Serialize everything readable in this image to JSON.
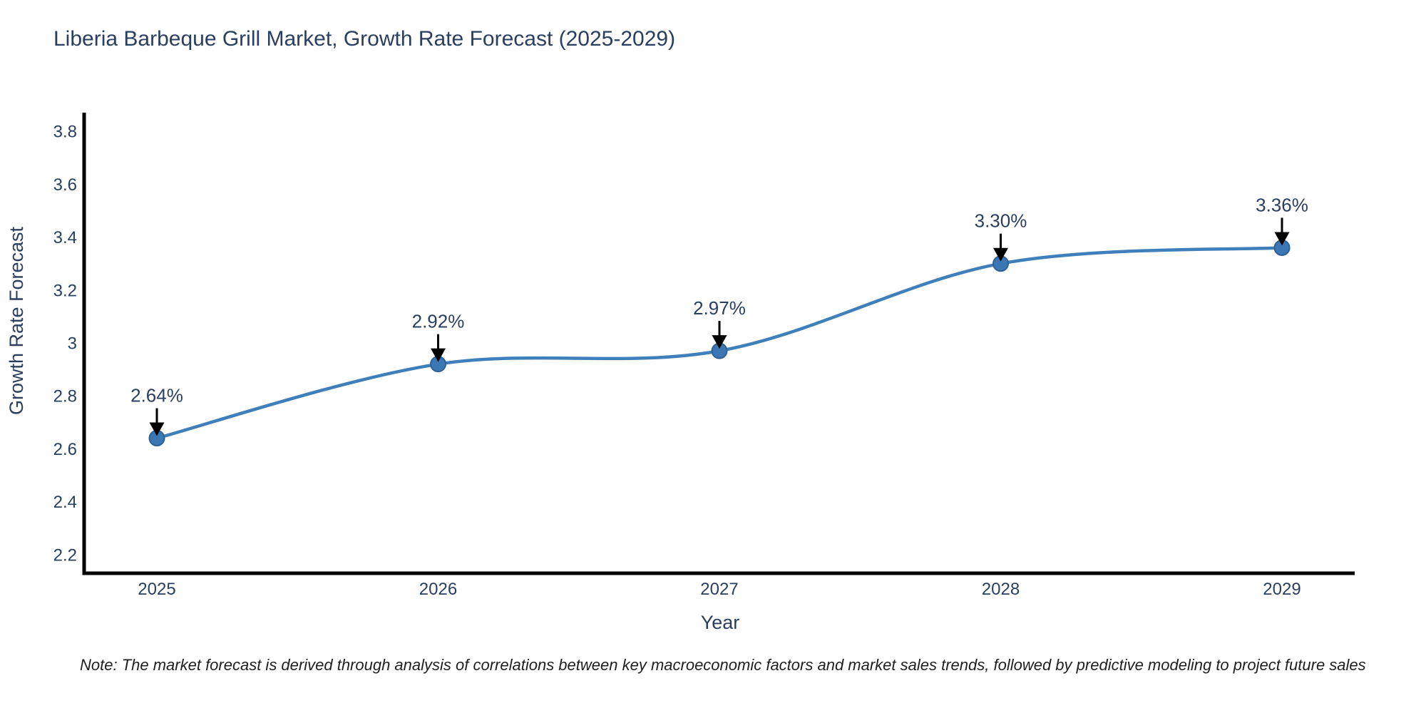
{
  "chart_data": {
    "type": "line",
    "title": "Liberia Barbeque Grill Market, Growth Rate Forecast (2025-2029)",
    "xlabel": "Year",
    "ylabel": "Growth Rate Forecast",
    "x": [
      2025,
      2026,
      2027,
      2028,
      2029
    ],
    "values": [
      2.64,
      2.92,
      2.97,
      3.3,
      3.36
    ],
    "point_labels": [
      "2.64%",
      "2.92%",
      "2.97%",
      "3.30%",
      "3.36%"
    ],
    "x_tick_labels": [
      "2025",
      "2026",
      "2027",
      "2028",
      "2029"
    ],
    "y_ticks": [
      2.2,
      2.4,
      2.6,
      2.8,
      3,
      3.2,
      3.4,
      3.6,
      3.8
    ],
    "y_tick_labels": [
      "2.2",
      "2.4",
      "2.6",
      "2.8",
      "3",
      "3.2",
      "3.4",
      "3.6",
      "3.8"
    ],
    "ylim": [
      2.13,
      3.87
    ],
    "xlim": [
      2024.73,
      2029.26
    ],
    "grid": false,
    "legend": null,
    "line_shape": "spline",
    "line_color": "#3f7fba",
    "marker_color": "#3b78b3",
    "marker_edge_color": "#2e6195",
    "axis_color": "#000000",
    "annotation_arrow_color": "#000000",
    "text_color": "#2a3f5f",
    "note": "Note: The market forecast is derived through analysis of correlations between key macroeconomic factors and market sales trends, followed by predictive modeling to project future sales"
  }
}
